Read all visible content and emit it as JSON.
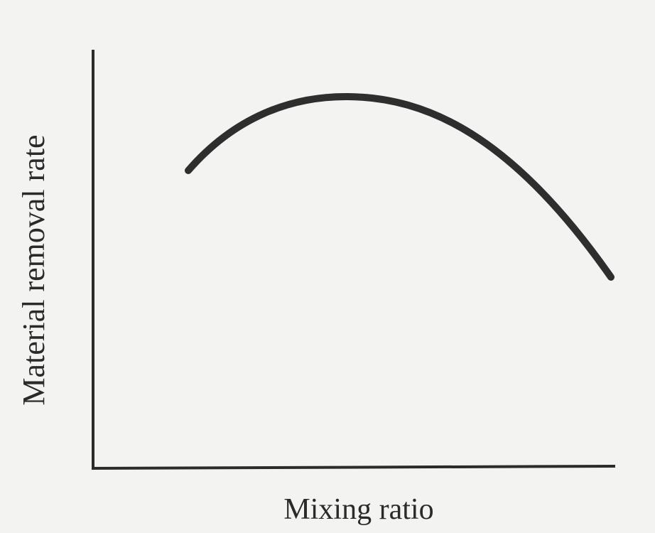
{
  "axes": {
    "y_label": "Material removal rate",
    "x_label": "Mixing ratio"
  }
}
